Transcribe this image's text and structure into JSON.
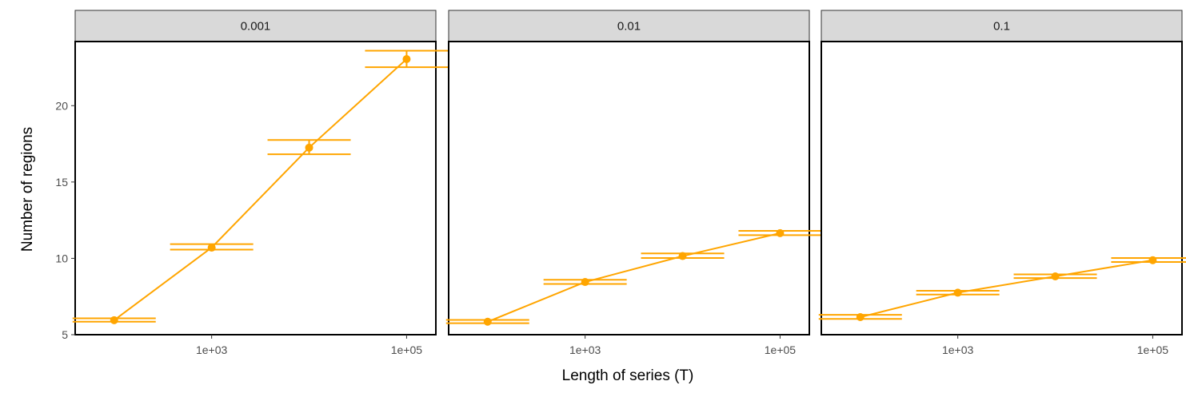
{
  "chart_data": {
    "type": "line",
    "facet_variable_values": [
      "0.001",
      "0.01",
      "0.1"
    ],
    "xlabel": "Length of series (T)",
    "ylabel": "Number of regions",
    "x_scale": "log10",
    "x": [
      100,
      1000,
      10000,
      100000
    ],
    "x_tick_values": [
      1000,
      100000
    ],
    "x_tick_labels": [
      "1e+03",
      "1e+05"
    ],
    "y_tick_values": [
      5,
      10,
      15,
      20
    ],
    "y_tick_labels": [
      "5",
      "10",
      "15",
      "20"
    ],
    "ylim": [
      5,
      24.2
    ],
    "grid": false,
    "color": "#FFA500",
    "panels": [
      {
        "label": "0.001",
        "values": [
          5.95,
          10.7,
          17.25,
          23.05
        ],
        "upper": [
          6.07,
          10.93,
          17.75,
          23.6
        ],
        "lower": [
          5.85,
          10.57,
          16.82,
          22.52
        ]
      },
      {
        "label": "0.01",
        "values": [
          5.85,
          8.45,
          10.15,
          11.65
        ],
        "upper": [
          5.97,
          8.6,
          10.32,
          11.8
        ],
        "lower": [
          5.75,
          8.32,
          10.02,
          11.52
        ]
      },
      {
        "label": "0.1",
        "values": [
          6.15,
          7.75,
          8.82,
          9.88
        ],
        "upper": [
          6.3,
          7.88,
          8.95,
          10.02
        ],
        "lower": [
          6.03,
          7.63,
          8.71,
          9.76
        ]
      }
    ]
  }
}
